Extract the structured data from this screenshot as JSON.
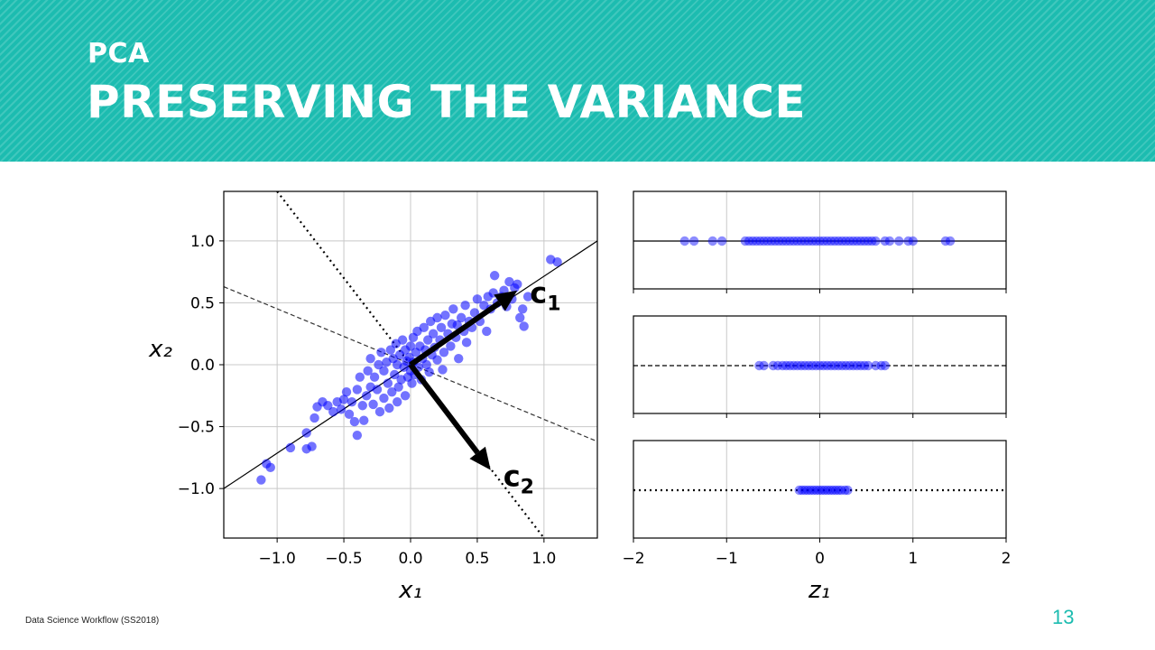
{
  "slide": {
    "kicker": "PCA",
    "title": "PRESERVING THE VARIANCE",
    "footer": "Data Science Workflow (SS2018)",
    "page_number": "13",
    "banner_color": "#1cbcb0",
    "point_color": "#0000ff"
  },
  "chart_data": [
    {
      "type": "scatter",
      "xlabel": "x₁",
      "ylabel": "x₂",
      "xlim": [
        -1.4,
        1.4
      ],
      "ylim": [
        -1.4,
        1.4
      ],
      "x_ticks": [
        -1.0,
        -0.5,
        0.0,
        0.5,
        1.0
      ],
      "x_tick_labels": [
        "−1.0",
        "−0.5",
        "0.0",
        "0.5",
        "1.0"
      ],
      "y_ticks": [
        1.0,
        0.5,
        0.0,
        -0.5,
        -1.0
      ],
      "y_tick_labels": [
        "1.0",
        "0.5",
        "0.0",
        "−0.5",
        "−1.0"
      ],
      "grid": true,
      "lines": [
        {
          "style": "solid",
          "from": [
            -1.4,
            -1.0
          ],
          "to": [
            1.4,
            1.0
          ]
        },
        {
          "style": "dashed",
          "from": [
            -1.4,
            0.63
          ],
          "to": [
            1.4,
            -0.62
          ]
        },
        {
          "style": "dotted",
          "from": [
            -1.0,
            1.4
          ],
          "to": [
            1.0,
            -1.4
          ]
        }
      ],
      "vectors": [
        {
          "label": "c",
          "subscript": "1",
          "from": [
            0.0,
            0.0
          ],
          "to": [
            0.8,
            0.6
          ]
        },
        {
          "label": "c",
          "subscript": "2",
          "from": [
            0.0,
            0.0
          ],
          "to": [
            0.6,
            -0.85
          ]
        }
      ],
      "points": [
        [
          -1.12,
          -0.93
        ],
        [
          -1.08,
          -0.8
        ],
        [
          -1.05,
          -0.83
        ],
        [
          -0.9,
          -0.67
        ],
        [
          -0.78,
          -0.68
        ],
        [
          -0.74,
          -0.66
        ],
        [
          -0.78,
          -0.55
        ],
        [
          -0.72,
          -0.43
        ],
        [
          -0.7,
          -0.34
        ],
        [
          -0.66,
          -0.3
        ],
        [
          -0.62,
          -0.33
        ],
        [
          -0.58,
          -0.38
        ],
        [
          -0.55,
          -0.3
        ],
        [
          -0.52,
          -0.36
        ],
        [
          -0.5,
          -0.28
        ],
        [
          -0.48,
          -0.22
        ],
        [
          -0.46,
          -0.4
        ],
        [
          -0.44,
          -0.3
        ],
        [
          -0.42,
          -0.46
        ],
        [
          -0.4,
          -0.57
        ],
        [
          -0.4,
          -0.2
        ],
        [
          -0.38,
          -0.1
        ],
        [
          -0.36,
          -0.33
        ],
        [
          -0.35,
          -0.45
        ],
        [
          -0.33,
          -0.25
        ],
        [
          -0.32,
          -0.05
        ],
        [
          -0.3,
          -0.18
        ],
        [
          -0.3,
          0.05
        ],
        [
          -0.28,
          -0.32
        ],
        [
          -0.27,
          -0.1
        ],
        [
          -0.25,
          -0.2
        ],
        [
          -0.24,
          0.0
        ],
        [
          -0.23,
          -0.38
        ],
        [
          -0.22,
          0.1
        ],
        [
          -0.2,
          -0.27
        ],
        [
          -0.2,
          -0.05
        ],
        [
          -0.18,
          0.02
        ],
        [
          -0.17,
          -0.15
        ],
        [
          -0.16,
          -0.35
        ],
        [
          -0.15,
          0.12
        ],
        [
          -0.14,
          -0.22
        ],
        [
          -0.13,
          0.05
        ],
        [
          -0.12,
          -0.08
        ],
        [
          -0.11,
          0.17
        ],
        [
          -0.1,
          -0.3
        ],
        [
          -0.1,
          0.0
        ],
        [
          -0.09,
          -0.18
        ],
        [
          -0.08,
          0.08
        ],
        [
          -0.07,
          -0.12
        ],
        [
          -0.06,
          0.2
        ],
        [
          -0.05,
          -0.02
        ],
        [
          -0.04,
          -0.25
        ],
        [
          -0.04,
          0.12
        ],
        [
          -0.03,
          0.03
        ],
        [
          -0.02,
          -0.1
        ],
        [
          -0.01,
          0.06
        ],
        [
          0.0,
          0.15
        ],
        [
          0.0,
          -0.05
        ],
        [
          0.01,
          -0.15
        ],
        [
          0.02,
          0.02
        ],
        [
          0.02,
          0.22
        ],
        [
          0.03,
          -0.08
        ],
        [
          0.04,
          0.1
        ],
        [
          0.05,
          0.27
        ],
        [
          0.06,
          -0.02
        ],
        [
          0.07,
          0.15
        ],
        [
          0.08,
          -0.12
        ],
        [
          0.09,
          0.05
        ],
        [
          0.1,
          0.3
        ],
        [
          0.11,
          0.12
        ],
        [
          0.12,
          0.0
        ],
        [
          0.13,
          0.2
        ],
        [
          0.14,
          -0.06
        ],
        [
          0.15,
          0.35
        ],
        [
          0.16,
          0.08
        ],
        [
          0.17,
          0.25
        ],
        [
          0.18,
          0.14
        ],
        [
          0.2,
          0.38
        ],
        [
          0.2,
          0.04
        ],
        [
          0.22,
          0.2
        ],
        [
          0.23,
          0.3
        ],
        [
          0.24,
          -0.04
        ],
        [
          0.25,
          0.1
        ],
        [
          0.26,
          0.4
        ],
        [
          0.28,
          0.25
        ],
        [
          0.3,
          0.15
        ],
        [
          0.31,
          0.33
        ],
        [
          0.32,
          0.45
        ],
        [
          0.34,
          0.22
        ],
        [
          0.35,
          0.32
        ],
        [
          0.36,
          0.05
        ],
        [
          0.38,
          0.38
        ],
        [
          0.4,
          0.27
        ],
        [
          0.41,
          0.48
        ],
        [
          0.42,
          0.18
        ],
        [
          0.44,
          0.35
        ],
        [
          0.46,
          0.3
        ],
        [
          0.48,
          0.42
        ],
        [
          0.5,
          0.53
        ],
        [
          0.52,
          0.35
        ],
        [
          0.55,
          0.48
        ],
        [
          0.57,
          0.27
        ],
        [
          0.58,
          0.55
        ],
        [
          0.6,
          0.45
        ],
        [
          0.62,
          0.58
        ],
        [
          0.63,
          0.72
        ],
        [
          0.65,
          0.5
        ],
        [
          0.68,
          0.55
        ],
        [
          0.7,
          0.6
        ],
        [
          0.72,
          0.47
        ],
        [
          0.74,
          0.67
        ],
        [
          0.76,
          0.53
        ],
        [
          0.78,
          0.62
        ],
        [
          0.8,
          0.65
        ],
        [
          0.82,
          0.38
        ],
        [
          0.84,
          0.45
        ],
        [
          0.85,
          0.31
        ],
        [
          0.88,
          0.55
        ],
        [
          1.05,
          0.85
        ],
        [
          1.1,
          0.83
        ]
      ]
    },
    {
      "type": "scatter",
      "xlabel": "z₁",
      "xlim": [
        -2,
        2
      ],
      "x_ticks": [
        -2,
        -1,
        0,
        1,
        2
      ],
      "x_tick_labels": [
        "−2",
        "−1",
        "0",
        "1",
        "2"
      ],
      "grid": true,
      "panels": [
        {
          "line_style": "solid",
          "points": [
            -1.45,
            -1.35,
            -1.15,
            -1.05,
            -0.8,
            -0.76,
            -0.72,
            -0.68,
            -0.64,
            -0.6,
            -0.56,
            -0.52,
            -0.48,
            -0.44,
            -0.4,
            -0.36,
            -0.32,
            -0.28,
            -0.24,
            -0.2,
            -0.16,
            -0.12,
            -0.08,
            -0.04,
            0.0,
            0.04,
            0.08,
            0.12,
            0.16,
            0.2,
            0.24,
            0.28,
            0.32,
            0.36,
            0.4,
            0.44,
            0.48,
            0.52,
            0.56,
            0.6,
            0.7,
            0.75,
            0.85,
            0.95,
            1.0,
            1.35,
            1.4
          ]
        },
        {
          "line_style": "dashed",
          "points": [
            -0.65,
            -0.6,
            -0.5,
            -0.45,
            -0.4,
            -0.36,
            -0.32,
            -0.28,
            -0.24,
            -0.2,
            -0.16,
            -0.12,
            -0.08,
            -0.04,
            0.0,
            0.04,
            0.08,
            0.12,
            0.16,
            0.2,
            0.24,
            0.28,
            0.32,
            0.36,
            0.4,
            0.44,
            0.48,
            0.52,
            0.6,
            0.66,
            0.7
          ]
        },
        {
          "line_style": "dotted",
          "points": [
            -0.22,
            -0.19,
            -0.16,
            -0.13,
            -0.1,
            -0.07,
            -0.04,
            -0.01,
            0.02,
            0.05,
            0.08,
            0.11,
            0.14,
            0.17,
            0.2,
            0.23,
            0.27,
            0.3
          ]
        }
      ]
    }
  ]
}
